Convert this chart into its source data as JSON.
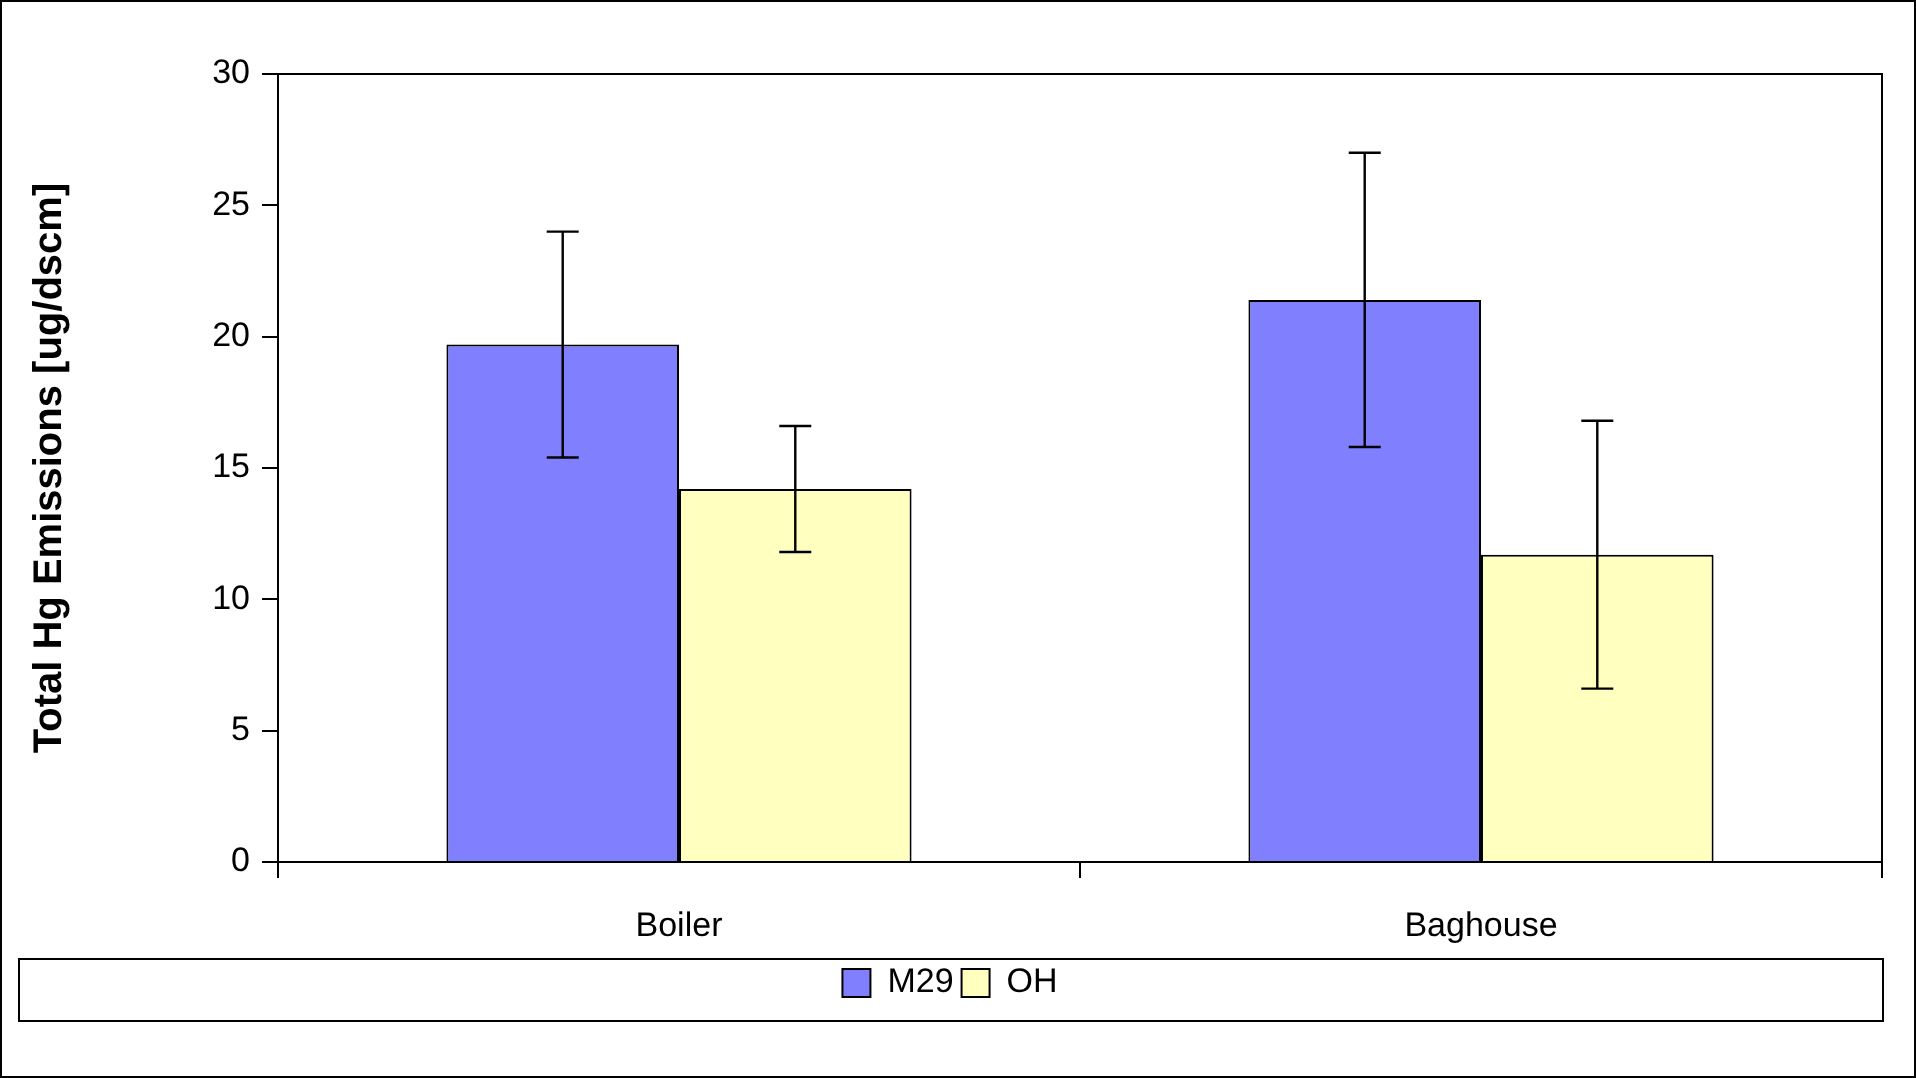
{
  "chart_data": {
    "type": "bar",
    "ylabel": "Total Hg Emissions [ug/dscm]",
    "categories": [
      "Boiler",
      "Baghouse"
    ],
    "series": [
      {
        "name": "M29",
        "color": "#8080ff",
        "values": [
          19.7,
          21.4
        ],
        "errors": [
          4.3,
          5.6
        ]
      },
      {
        "name": "OH",
        "color": "#ffffc0",
        "values": [
          14.2,
          11.7
        ],
        "errors": [
          2.4,
          5.1
        ]
      }
    ],
    "ylim": [
      0,
      30
    ],
    "yticks": [
      0,
      5,
      10,
      15,
      20,
      25,
      30
    ],
    "grid": false,
    "legend": "bottom"
  }
}
